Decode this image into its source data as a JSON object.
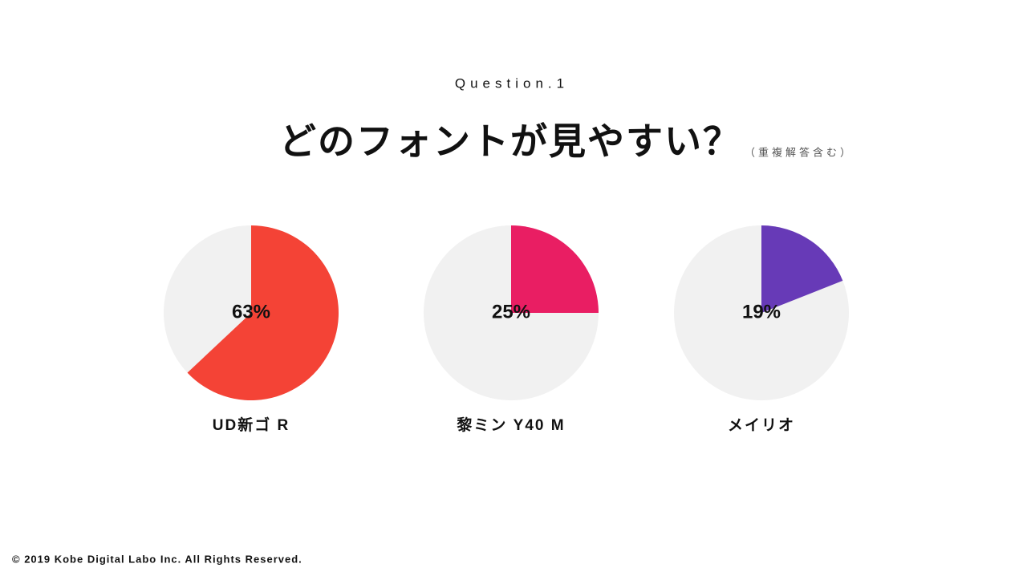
{
  "header": {
    "kicker": "Question.1",
    "title": "どのフォントが見やすい？",
    "note": "（重複解答含む）"
  },
  "chart_data": [
    {
      "type": "pie",
      "title": "UD新ゴ R",
      "values": [
        63
      ],
      "value_labels": [
        "63%"
      ],
      "color": "#f44336"
    },
    {
      "type": "pie",
      "title": "黎ミン Y40 M",
      "values": [
        25
      ],
      "value_labels": [
        "25%"
      ],
      "color": "#e91e63"
    },
    {
      "type": "pie",
      "title": "メイリオ",
      "values": [
        19
      ],
      "value_labels": [
        "19%"
      ],
      "color": "#673ab7"
    }
  ],
  "footer": "© 2019 Kobe Digital Labo Inc. All Rights Reserved."
}
